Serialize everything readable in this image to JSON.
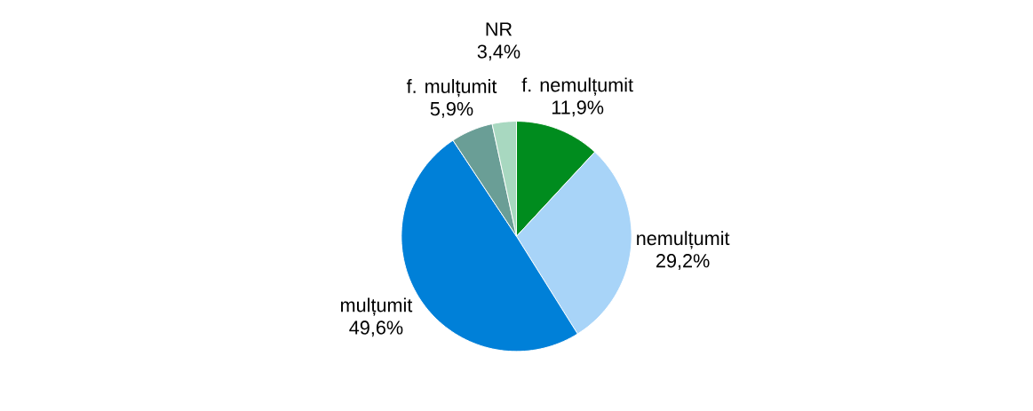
{
  "chart_data": {
    "type": "pie",
    "categories": [
      "f. nemulțumit",
      "nemulțumit",
      "mulțumit",
      "f. mulțumit",
      "NR"
    ],
    "values": [
      11.9,
      29.2,
      49.6,
      5.9,
      3.4
    ],
    "value_labels": [
      "11,9%",
      "29,2%",
      "49,6%",
      "5,9%",
      "3,4%"
    ],
    "colors": [
      "#008c1e",
      "#a8d4f8",
      "#0080d8",
      "#6a9e96",
      "#a8d8c0"
    ]
  }
}
